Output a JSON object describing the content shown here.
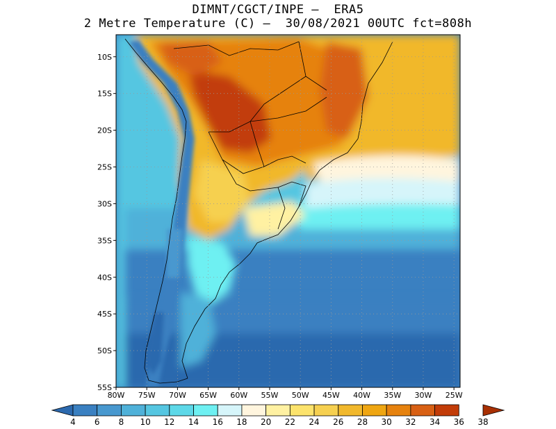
{
  "title": {
    "line1": "DIMNT/CGCT/INPE –  ERA5",
    "line2": "2 Metre Temperature (C) –  30/08/2021 00UTC fct=808h"
  },
  "map": {
    "projection": "lat-lon",
    "lon_range": [
      -80,
      -24
    ],
    "lat_range": [
      -55,
      -7
    ],
    "lat_ticks": [
      {
        "value": -10,
        "label": "10S"
      },
      {
        "value": -15,
        "label": "15S"
      },
      {
        "value": -20,
        "label": "20S"
      },
      {
        "value": -25,
        "label": "25S"
      },
      {
        "value": -30,
        "label": "30S"
      },
      {
        "value": -35,
        "label": "35S"
      },
      {
        "value": -40,
        "label": "40S"
      },
      {
        "value": -45,
        "label": "45S"
      },
      {
        "value": -50,
        "label": "50S"
      },
      {
        "value": -55,
        "label": "55S"
      }
    ],
    "lon_ticks": [
      {
        "value": -80,
        "label": "80W"
      },
      {
        "value": -75,
        "label": "75W"
      },
      {
        "value": -70,
        "label": "70W"
      },
      {
        "value": -65,
        "label": "65W"
      },
      {
        "value": -60,
        "label": "60W"
      },
      {
        "value": -55,
        "label": "55W"
      },
      {
        "value": -50,
        "label": "50W"
      },
      {
        "value": -45,
        "label": "45W"
      },
      {
        "value": -40,
        "label": "40W"
      },
      {
        "value": -35,
        "label": "35W"
      },
      {
        "value": -30,
        "label": "30W"
      },
      {
        "value": -25,
        "label": "25W"
      }
    ]
  },
  "colorbar": {
    "boundaries": [
      "4",
      "6",
      "8",
      "10",
      "12",
      "14",
      "16",
      "18",
      "20",
      "22",
      "24",
      "26",
      "28",
      "30",
      "32",
      "34",
      "36",
      "38"
    ],
    "colors": [
      "#2c69ae",
      "#3a80c1",
      "#4898cf",
      "#4fb1d9",
      "#55c6e1",
      "#5dd8e8",
      "#6ef0f2",
      "#d6f5fa",
      "#fff5de",
      "#fff1a2",
      "#fce36c",
      "#f6d050",
      "#f1b82c",
      "#efa612",
      "#e6820e",
      "#d86014",
      "#c23c08",
      "#a83003"
    ],
    "unit": "C"
  },
  "colors": {
    "ocean_cold": "#2c69ae",
    "ocean_mid": "#4fb1d9",
    "ocean_warm": "#6ef0f2",
    "land_hot": "#e6820e",
    "land_warm": "#f1b82c",
    "andes": "#3a80c1",
    "coast": "#000000"
  }
}
